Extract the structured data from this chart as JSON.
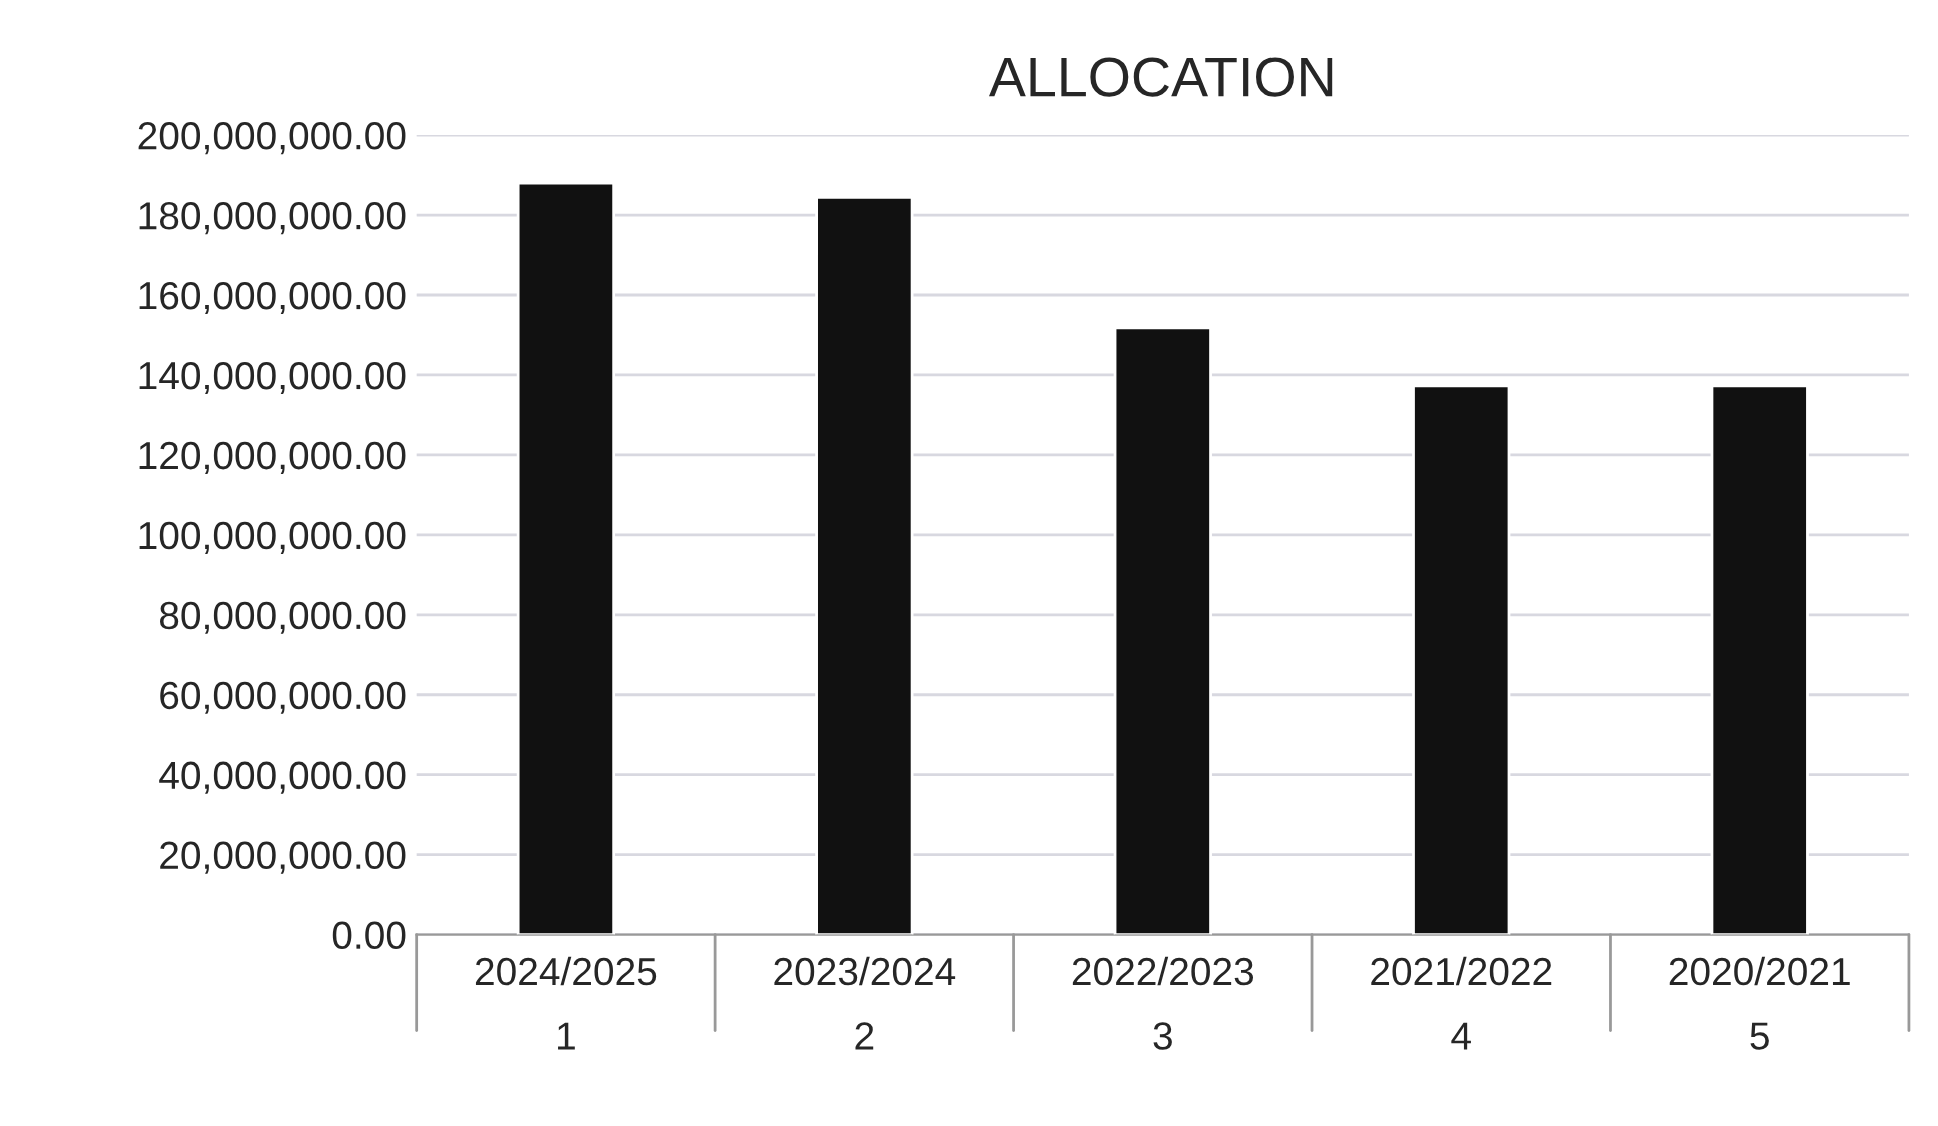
{
  "chart_data": {
    "type": "bar",
    "title": "ALLOCATION",
    "categories": [
      "2024/2025\n1",
      "2023/2024\n2",
      "2022/2023\n3",
      "2021/2022\n4",
      "2020/2021\n5"
    ],
    "values": [
      188000000,
      184400000,
      151800000,
      137300000,
      137300000
    ],
    "color": "#111111",
    "ylim": [
      0,
      200000000
    ],
    "yticks": [
      {
        "value": 0,
        "label": "0.00"
      },
      {
        "value": 20000000,
        "label": "20,000,000.00"
      },
      {
        "value": 40000000,
        "label": "40,000,000.00"
      },
      {
        "value": 60000000,
        "label": "60,000,000.00"
      },
      {
        "value": 80000000,
        "label": "80,000,000.00"
      },
      {
        "value": 100000000,
        "label": "100,000,000.00"
      },
      {
        "value": 120000000,
        "label": "120,000,000.00"
      },
      {
        "value": 140000000,
        "label": "140,000,000.00"
      },
      {
        "value": 160000000,
        "label": "160,000,000.00"
      },
      {
        "value": 180000000,
        "label": "180,000,000.00"
      },
      {
        "value": 200000000,
        "label": "200,000,000.00"
      }
    ],
    "grid": "y"
  }
}
